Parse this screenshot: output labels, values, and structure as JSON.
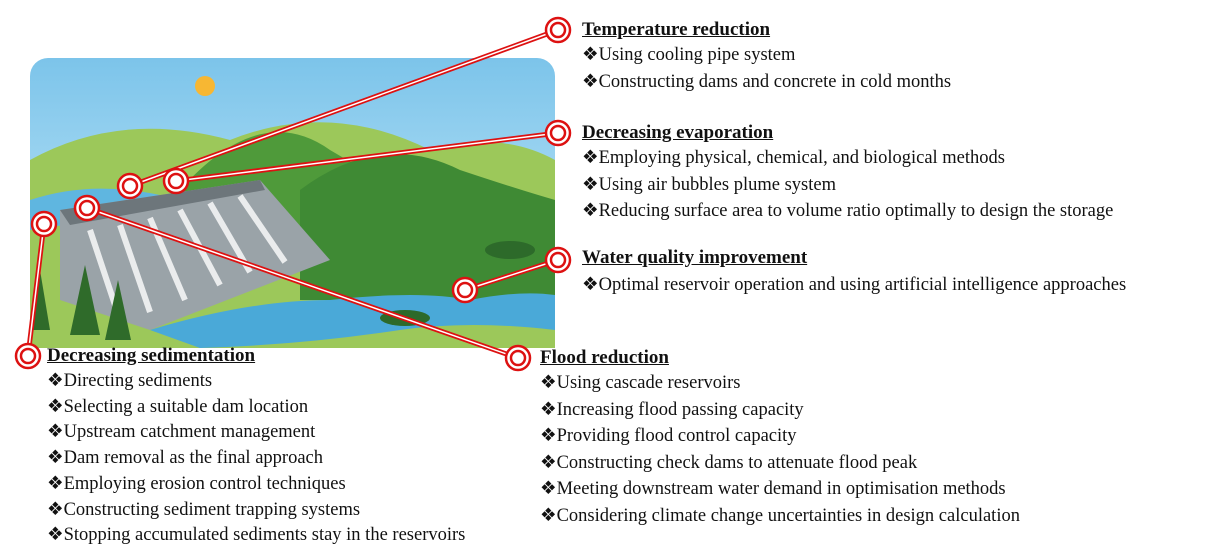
{
  "sections": [
    {
      "title": "Temperature reduction",
      "items": [
        "❖Using cooling pipe system",
        "❖Constructing dams and concrete in cold months"
      ]
    },
    {
      "title": "Decreasing evaporation",
      "items": [
        "❖Employing physical, chemical, and biological methods",
        "❖Using air bubbles plume system",
        "❖Reducing surface area to volume ratio optimally to design the storage"
      ]
    },
    {
      "title": "Water quality improvement",
      "items": [
        "❖Optimal reservoir operation and using artificial intelligence approaches"
      ]
    },
    {
      "title": "Decreasing sedimentation",
      "items": [
        "❖Directing sediments",
        "❖Selecting a suitable dam location",
        "❖Upstream catchment management",
        "❖Dam removal as the final approach",
        "❖Employing erosion control techniques",
        "❖Constructing sediment trapping systems",
        "❖Stopping accumulated sediments stay in the reservoirs"
      ]
    },
    {
      "title": "Flood reduction",
      "items": [
        "❖Using cascade reservoirs",
        "❖Increasing flood passing capacity",
        "❖Providing flood control capacity",
        "❖Constructing check dams to attenuate flood peak",
        "❖Meeting downstream water demand in optimisation methods",
        "❖Considering climate change uncertainties in design calculation"
      ]
    }
  ]
}
